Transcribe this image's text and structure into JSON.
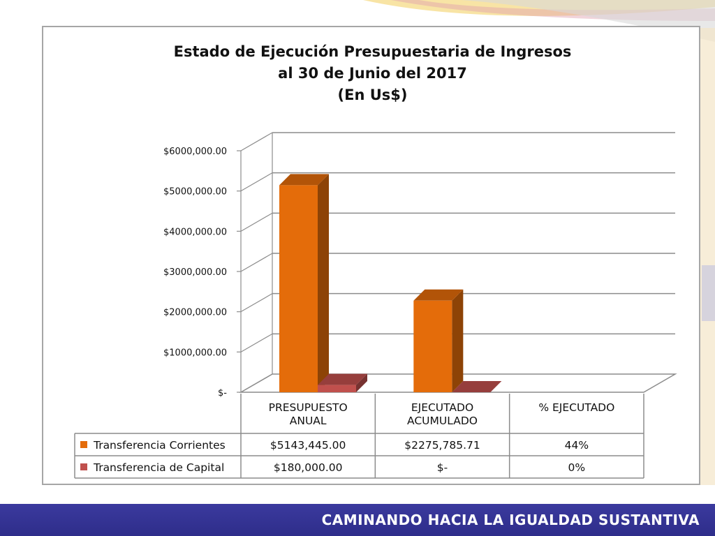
{
  "chart_data": {
    "type": "bar",
    "title_lines": [
      "Estado de Ejecución Presupuestaria de Ingresos",
      "al 30 de Junio del 2017",
      "(En Us$)"
    ],
    "categories": [
      "PRESUPUESTO ANUAL",
      "EJECUTADO ACUMULADO",
      "% EJECUTADO"
    ],
    "categories_lines": [
      [
        "PRESUPUESTO",
        "ANUAL"
      ],
      [
        "EJECUTADO",
        "ACUMULADO"
      ],
      [
        "% EJECUTADO"
      ]
    ],
    "y_ticks": [
      "$-",
      "$1000,000.00",
      "$2000,000.00",
      "$3000,000.00",
      "$4000,000.00",
      "$5000,000.00",
      "$6000,000.00"
    ],
    "ylim": [
      0,
      6000000
    ],
    "grid": true,
    "legend_placement": "data-table",
    "series": [
      {
        "name": "Transferencia Corrientes",
        "color": "#e46c0a",
        "values": [
          5143445.0,
          2275785.71,
          null
        ],
        "table": [
          "$5143,445.00",
          "$2275,785.71",
          "44%"
        ]
      },
      {
        "name": "Transferencia de Capital",
        "color": "#c0504d",
        "values": [
          180000.0,
          0,
          null
        ],
        "table": [
          "$180,000.00",
          "$-",
          "0%"
        ]
      }
    ]
  },
  "footer": {
    "slogan": "CAMINANDO HACIA LA IGUALDAD SUSTANTIVA"
  }
}
